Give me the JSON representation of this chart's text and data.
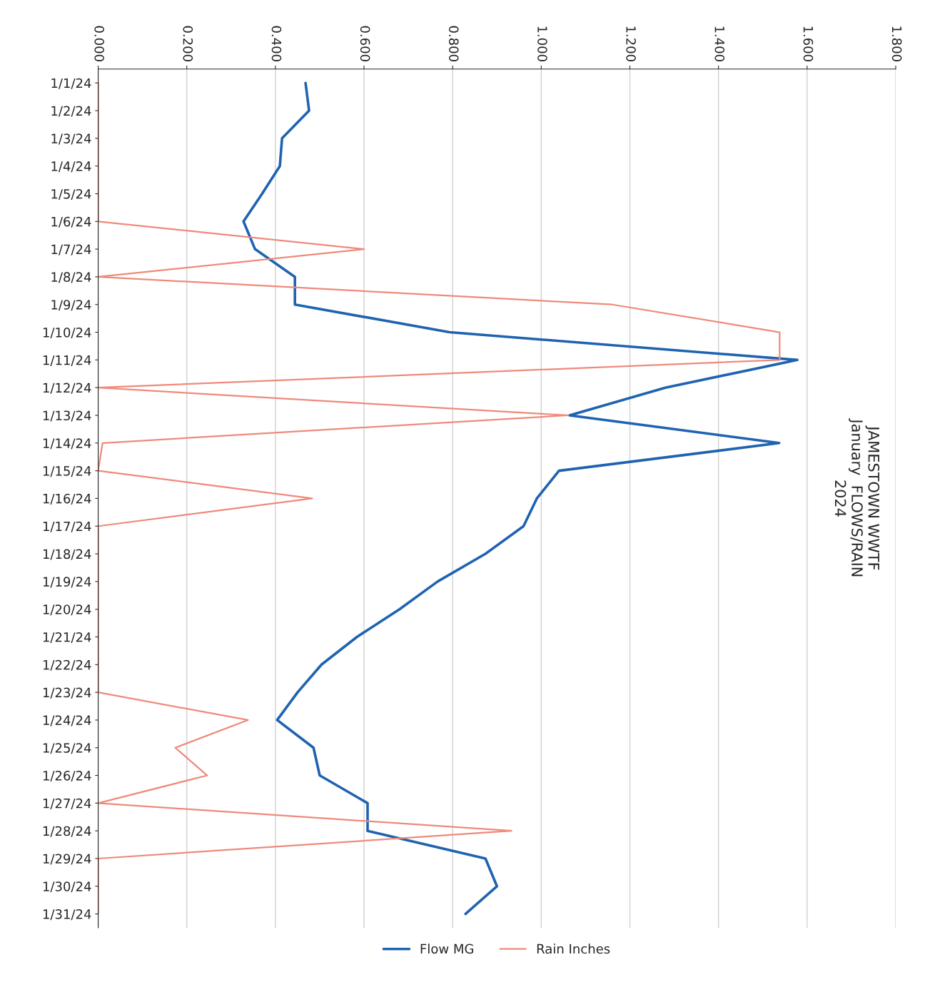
{
  "chart_data": {
    "type": "line",
    "title": "JAMESTOWN WWTF\nJanuary  FLOWS/RAIN\n2024",
    "orientation": "horizontal",
    "categories": [
      "1/1/24",
      "1/2/24",
      "1/3/24",
      "1/4/24",
      "1/5/24",
      "1/6/24",
      "1/7/24",
      "1/8/24",
      "1/9/24",
      "1/10/24",
      "1/11/24",
      "1/12/24",
      "1/13/24",
      "1/14/24",
      "1/15/24",
      "1/16/24",
      "1/17/24",
      "1/18/24",
      "1/19/24",
      "1/20/24",
      "1/21/24",
      "1/22/24",
      "1/23/24",
      "1/24/24",
      "1/25/24",
      "1/26/24",
      "1/27/24",
      "1/28/24",
      "1/29/24",
      "1/30/24",
      "1/31/24"
    ],
    "series": [
      {
        "name": "Flow MG",
        "color": "#1f63b0",
        "values": [
          0.468,
          0.476,
          0.415,
          0.41,
          0.37,
          0.328,
          0.354,
          0.444,
          0.444,
          0.793,
          1.578,
          1.28,
          1.064,
          1.537,
          1.04,
          0.99,
          0.96,
          0.874,
          0.766,
          0.68,
          0.584,
          0.504,
          0.45,
          0.404,
          0.486,
          0.5,
          0.608,
          0.608,
          0.874,
          0.9,
          0.829
        ]
      },
      {
        "name": "Rain Inches",
        "color": "#ef8a7a",
        "values": [
          0,
          0,
          0,
          0,
          0,
          0,
          0.6,
          0,
          1.16,
          1.538,
          1.538,
          0,
          1.06,
          0.01,
          0,
          0.483,
          0,
          0,
          0,
          0,
          0,
          0,
          0,
          0.338,
          0.174,
          0.246,
          0,
          0.933,
          0,
          0,
          0
        ]
      }
    ],
    "xlim": [
      0,
      1.8
    ],
    "xticks": [
      {
        "value": 0,
        "label": "0.000"
      },
      {
        "value": 0.2,
        "label": "0.200"
      },
      {
        "value": 0.4,
        "label": "0.400"
      },
      {
        "value": 0.6,
        "label": "0.600"
      },
      {
        "value": 0.8,
        "label": "0.800"
      },
      {
        "value": 1.0,
        "label": "1.000"
      },
      {
        "value": 1.2,
        "label": "1.200"
      },
      {
        "value": 1.4,
        "label": "1.400"
      },
      {
        "value": 1.6,
        "label": "1.600"
      },
      {
        "value": 1.8,
        "label": "1.800"
      }
    ],
    "grid": "x",
    "legend": "bottom",
    "marker": "none",
    "line_style": "solid"
  }
}
